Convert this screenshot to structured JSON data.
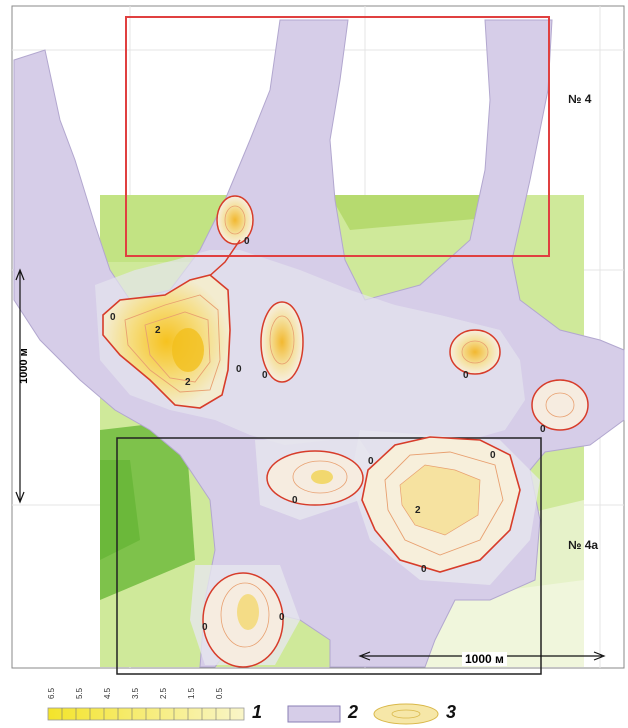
{
  "map": {
    "areas": [
      {
        "id": "area4",
        "label": "№ 4",
        "frame_color": "#e04040"
      },
      {
        "id": "area4a",
        "label": "№ 4a",
        "frame_color": "#222222"
      }
    ],
    "scale_vertical": "1000 м",
    "scale_horizontal": "1000 м",
    "contour_labels": [
      "0",
      "2"
    ],
    "colors": {
      "zone_background": "#c8e68c",
      "zone_dark": "#7fc04a",
      "purple_zone": "#d5cde8",
      "contour_outer": "#d73c2a",
      "contour_inner": "#e8a070",
      "core": "#f4c430"
    }
  },
  "legend": {
    "ticks": [
      "6.5",
      "5.5",
      "4.5",
      "3.5",
      "2.5",
      "1.5",
      "0.5"
    ],
    "items": [
      {
        "number": "1",
        "icon": "color-scale-bar"
      },
      {
        "number": "2",
        "icon": "purple-rectangle"
      },
      {
        "number": "3",
        "icon": "yellow-ellipse"
      }
    ]
  }
}
